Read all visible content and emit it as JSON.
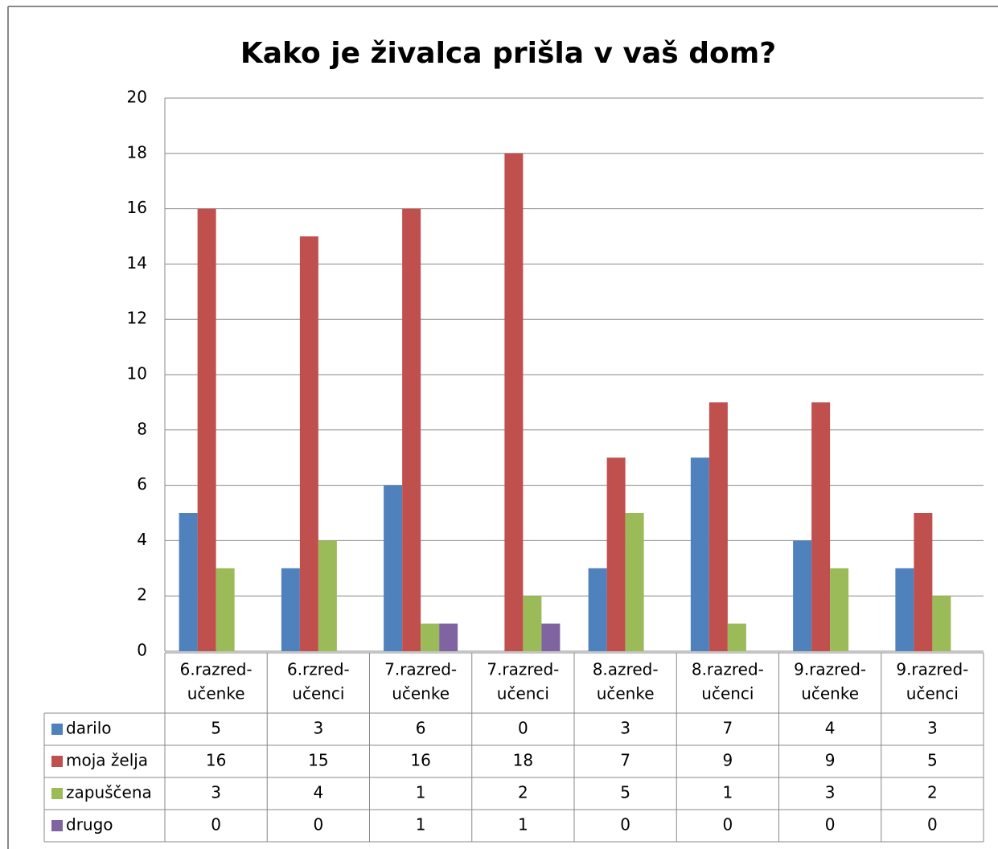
{
  "chart_data": {
    "type": "bar",
    "title": "Kako je živalca prišla v vaš dom?",
    "categories": [
      [
        "6.razred-",
        "učenke"
      ],
      [
        "6.rzred-",
        "učenci"
      ],
      [
        "7.razred-",
        "učenke"
      ],
      [
        "7.razred-",
        "učenci"
      ],
      [
        "8.azred-",
        "učenke"
      ],
      [
        "8.razred-",
        "učenci"
      ],
      [
        "9.razred-",
        "učenke"
      ],
      [
        "9.razred-",
        "učenci"
      ]
    ],
    "series": [
      {
        "name": "darilo",
        "color": "#4f81bd",
        "values": [
          5,
          3,
          6,
          0,
          3,
          7,
          4,
          3
        ]
      },
      {
        "name": "moja želja",
        "color": "#c0504d",
        "values": [
          16,
          15,
          16,
          18,
          7,
          9,
          9,
          5
        ]
      },
      {
        "name": "zapuščena",
        "color": "#9bbb59",
        "values": [
          3,
          4,
          1,
          2,
          5,
          1,
          3,
          2
        ]
      },
      {
        "name": "drugo",
        "color": "#8064a2",
        "values": [
          0,
          0,
          1,
          1,
          0,
          0,
          0,
          0
        ]
      }
    ],
    "ylim": [
      0,
      20
    ],
    "yticks": [
      0,
      2,
      4,
      6,
      8,
      10,
      12,
      14,
      16,
      18,
      20
    ],
    "grid": true
  }
}
